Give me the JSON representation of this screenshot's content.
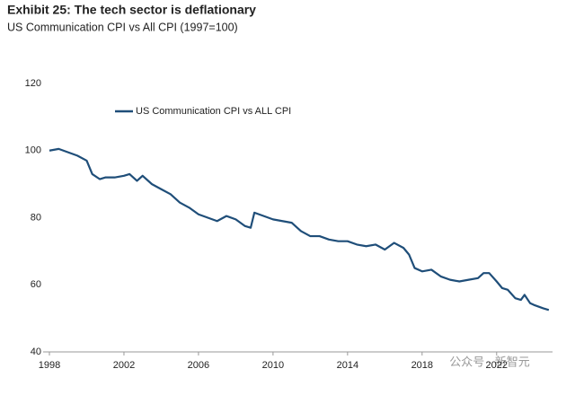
{
  "chart_data": {
    "type": "line",
    "title": "Exhibit 25: The tech sector is deflationary",
    "subtitle": "US Communication CPI vs All CPI (1997=100)",
    "watermark": "公众号 · 新智元",
    "x": [
      1998,
      1998.5,
      1999,
      1999.5,
      2000,
      2000.3,
      2000.7,
      2001,
      2001.5,
      2002,
      2002.3,
      2002.7,
      2003,
      2003.5,
      2004,
      2004.5,
      2005,
      2005.5,
      2006,
      2006.5,
      2007,
      2007.5,
      2008,
      2008.5,
      2008.8,
      2009,
      2009.5,
      2010,
      2010.5,
      2011,
      2011.5,
      2012,
      2012.5,
      2013,
      2013.5,
      2014,
      2014.5,
      2015,
      2015.5,
      2016,
      2016.5,
      2017,
      2017.3,
      2017.6,
      2018,
      2018.5,
      2019,
      2019.5,
      2020,
      2020.5,
      2021,
      2021.3,
      2021.6,
      2022,
      2022.3,
      2022.6,
      2023,
      2023.3,
      2023.5,
      2023.8,
      2024,
      2024.5,
      2024.8
    ],
    "series": [
      {
        "name": "US Communication CPI vs ALL CPI",
        "color": "#1f4e79",
        "values": [
          100,
          100.5,
          99.5,
          98.5,
          97,
          93,
          91.5,
          92,
          92,
          92.5,
          93,
          91,
          92.5,
          90,
          88.5,
          87,
          84.5,
          83,
          81,
          80,
          79,
          80.5,
          79.5,
          77.5,
          77,
          81.5,
          80.5,
          79.5,
          79,
          78.5,
          76,
          74.5,
          74.5,
          73.5,
          73,
          73,
          72,
          71.5,
          72,
          70.5,
          72.5,
          71,
          69,
          65,
          64,
          64.5,
          62.5,
          61.5,
          61,
          61.5,
          62,
          63.5,
          63.5,
          61,
          59,
          58.5,
          56,
          55.5,
          57,
          54.5,
          54,
          53,
          52.5
        ]
      }
    ],
    "xlim": [
      1998,
      2025
    ],
    "xticks": [
      1998,
      2002,
      2006,
      2010,
      2014,
      2018,
      2022
    ],
    "ylim": [
      40,
      120
    ],
    "yticks": [
      40,
      60,
      80,
      100,
      120
    ],
    "legend": "upper left"
  }
}
